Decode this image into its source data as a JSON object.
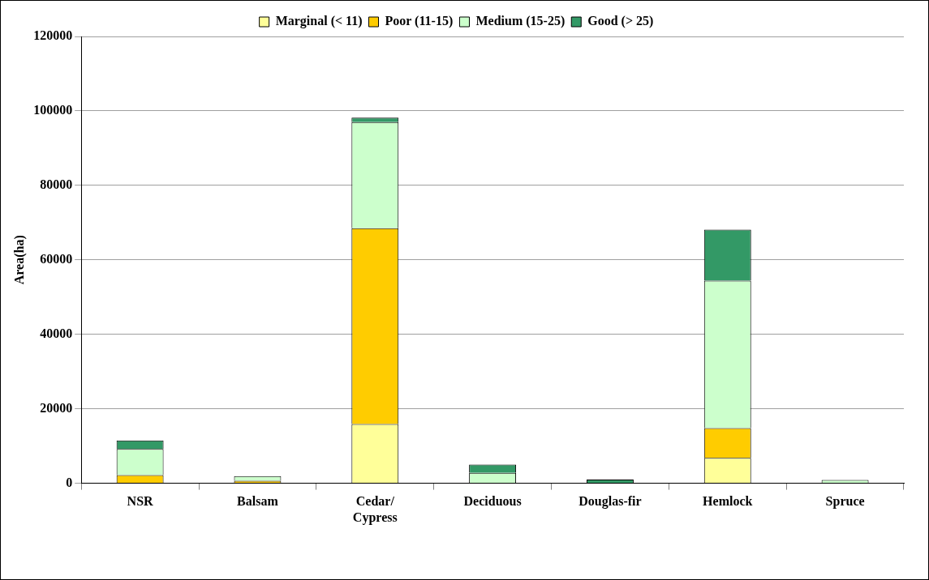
{
  "chart_data": {
    "type": "bar",
    "stacked": true,
    "ylabel": "Area(ha)",
    "categories": [
      "NSR",
      "Balsam",
      "Cedar/ Cypress",
      "Deciduous",
      "Douglas-fir",
      "Hemlock",
      "Spruce"
    ],
    "series": [
      {
        "name": "Marginal (< 11)",
        "color": "#ffff99",
        "values": [
          0,
          0,
          15900,
          0,
          0,
          6800,
          0
        ]
      },
      {
        "name": "Poor (11-15)",
        "color": "#ffcc00",
        "values": [
          2200,
          700,
          52600,
          0,
          0,
          8000,
          0
        ]
      },
      {
        "name": "Medium (15-25)",
        "color": "#ccffcc",
        "values": [
          7000,
          1200,
          28500,
          2800,
          0,
          39600,
          900
        ]
      },
      {
        "name": "Good (> 25)",
        "color": "#339966",
        "values": [
          2300,
          0,
          1200,
          2200,
          1000,
          13700,
          0
        ]
      }
    ],
    "ylim": [
      0,
      120000
    ],
    "yticks": [
      0,
      20000,
      40000,
      60000,
      80000,
      100000,
      120000
    ],
    "grid": "y",
    "legend": "top"
  }
}
